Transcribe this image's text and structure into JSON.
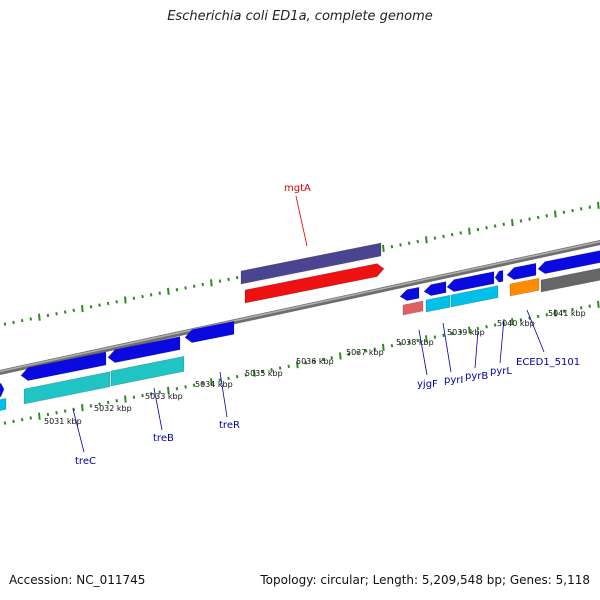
{
  "title": "Escherichia coli ED1a, complete genome",
  "footer": {
    "accession": "Accession: NC_011745",
    "topology": "Topology: circular; Length: 5,209,548 bp; Genes: 5,118"
  },
  "colors": {
    "backbone": "#8a8a8a",
    "tick": "#2e8b22",
    "cds_forward": "#0a0ae0",
    "cds_reverse": "#00bfe8",
    "trna": "#e06060",
    "other": "#ff8c00",
    "pseudo": "#666666",
    "mgtA": "#ee1111",
    "top_band": "#4b4490",
    "cyan_band": "#21c4c4",
    "label_forward": "#0000aa",
    "label_reverse": "#dd0000",
    "leader": "#0000cc"
  },
  "scale_labels": [
    "5031 kbp",
    "5032 kbp",
    "5033 kbp",
    "5034 kbp",
    "5035 kbp",
    "5036 kbp",
    "5037 kbp",
    "5038 kbp",
    "5039 kbp",
    "5040 kbp",
    "5041 kbp"
  ],
  "gene_labels": [
    {
      "text": "mgtA",
      "color": "#dd0000"
    },
    {
      "text": "treC",
      "color": "#0000aa"
    },
    {
      "text": "treB",
      "color": "#0000aa"
    },
    {
      "text": "treR",
      "color": "#0000aa"
    },
    {
      "text": "yjgF",
      "color": "#0000aa"
    },
    {
      "text": "pyrI",
      "color": "#0000aa"
    },
    {
      "text": "pyrB",
      "color": "#0000aa"
    },
    {
      "text": "pyrL",
      "color": "#0000aa"
    },
    {
      "text": "ECED1_5101",
      "color": "#0000aa"
    }
  ]
}
